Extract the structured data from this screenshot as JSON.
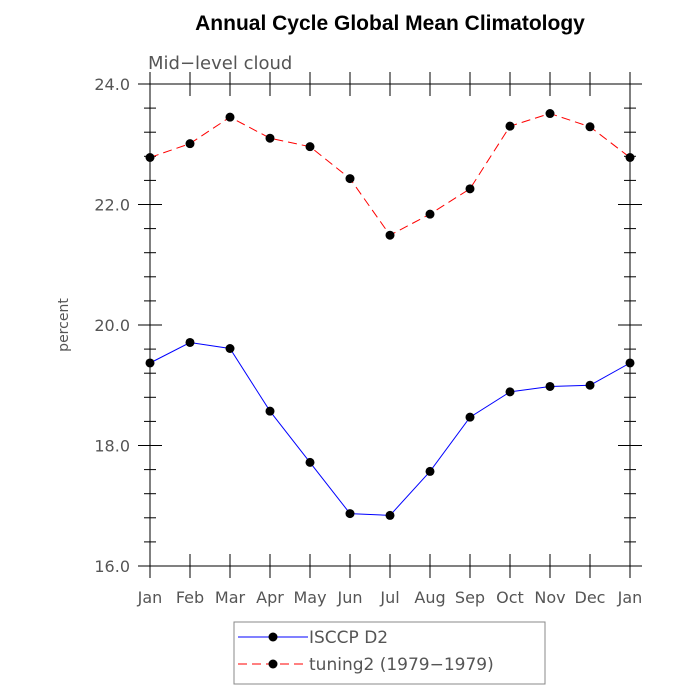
{
  "chart_data": {
    "type": "line",
    "title": "Annual Cycle Global Mean Climatology",
    "subtitle": "Mid−level cloud",
    "xlabel": "",
    "ylabel": "percent",
    "categories": [
      "Jan",
      "Feb",
      "Mar",
      "Apr",
      "May",
      "Jun",
      "Jul",
      "Aug",
      "Sep",
      "Oct",
      "Nov",
      "Dec",
      "Jan"
    ],
    "ylim": [
      16.0,
      24.0
    ],
    "yticks": [
      "16.0",
      "18.0",
      "20.0",
      "22.0",
      "24.0"
    ],
    "grid": false,
    "legend_position": "bottom",
    "series": [
      {
        "name": "ISCCP D2",
        "color": "#0000ff",
        "dash": "solid",
        "marker": "filled-circle",
        "values": [
          19.37,
          19.71,
          19.61,
          18.57,
          17.72,
          16.87,
          16.84,
          17.57,
          18.47,
          18.89,
          18.98,
          19.0,
          19.37
        ]
      },
      {
        "name": "tuning2 (1979−1979)",
        "color": "#ff0000",
        "dash": "dashed",
        "marker": "filled-circle",
        "values": [
          22.78,
          23.01,
          23.45,
          23.1,
          22.96,
          22.43,
          21.49,
          21.84,
          22.26,
          23.3,
          23.51,
          23.29,
          22.78
        ]
      }
    ]
  }
}
